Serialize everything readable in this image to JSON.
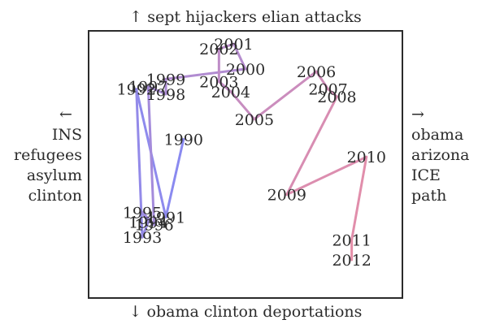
{
  "chart_data": {
    "type": "line",
    "axes": {
      "top": "↑ sept hijackers elian attacks",
      "bottom": "↓ obama clinton deportations",
      "left": [
        "←",
        "INS",
        "refugees",
        "asylum",
        "clinton"
      ],
      "right": [
        "→",
        "obama",
        "arizona",
        "ICE",
        "path"
      ]
    },
    "xlim": [
      0,
      100
    ],
    "ylim": [
      0,
      100
    ],
    "colors": {
      "start": "#8a8af0",
      "end": "#e58ea8"
    },
    "points": [
      {
        "year": "1990",
        "x": 29,
        "y": 60
      },
      {
        "year": "1991",
        "x": 23,
        "y": 29
      },
      {
        "year": "1992",
        "x": 13,
        "y": 80
      },
      {
        "year": "1993",
        "x": 15,
        "y": 21
      },
      {
        "year": "1994",
        "x": 17,
        "y": 27
      },
      {
        "year": "1995",
        "x": 15,
        "y": 31
      },
      {
        "year": "1996",
        "x": 19,
        "y": 26
      },
      {
        "year": "1997",
        "x": 17,
        "y": 81
      },
      {
        "year": "1998",
        "x": 23,
        "y": 78
      },
      {
        "year": "1999",
        "x": 23,
        "y": 84
      },
      {
        "year": "2000",
        "x": 50,
        "y": 88
      },
      {
        "year": "2001",
        "x": 46,
        "y": 98
      },
      {
        "year": "2002",
        "x": 41,
        "y": 96
      },
      {
        "year": "2003",
        "x": 41,
        "y": 83
      },
      {
        "year": "2004",
        "x": 45,
        "y": 79
      },
      {
        "year": "2005",
        "x": 53,
        "y": 68
      },
      {
        "year": "2006",
        "x": 74,
        "y": 87
      },
      {
        "year": "2007",
        "x": 78,
        "y": 80
      },
      {
        "year": "2008",
        "x": 81,
        "y": 77
      },
      {
        "year": "2009",
        "x": 64,
        "y": 38
      },
      {
        "year": "2010",
        "x": 91,
        "y": 53
      },
      {
        "year": "2011",
        "x": 86,
        "y": 20
      },
      {
        "year": "2012",
        "x": 86,
        "y": 12
      }
    ]
  }
}
